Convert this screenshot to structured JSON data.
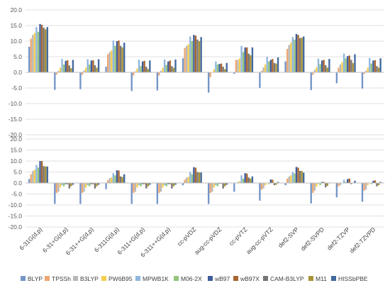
{
  "chart_data": [
    {
      "type": "bar",
      "ylim": [
        -20,
        20
      ],
      "yticks": [
        -20,
        -15,
        -10,
        -5,
        0,
        5,
        10,
        15,
        20
      ],
      "grid": true,
      "categories": [
        "6-31G(d,p)",
        "6-31+G(d,p)",
        "6-31++G(d,p)",
        "6-311G(d,p)",
        "6-311+G(d,p)",
        "6-311++G(d,p)",
        "cc-pVDZ",
        "aug-cc-pVDZ",
        "cc-pVTZ",
        "aug-cc-pVTZ",
        "def2-SVP",
        "def2-SVPD",
        "def2-TZVP",
        "def2-TZVPD"
      ],
      "series": [
        {
          "name": "BLYP",
          "values": [
            8.2,
            -5.6,
            -5.4,
            1.8,
            -6.0,
            -5.8,
            4.5,
            -6.5,
            -0.5,
            -5.0,
            3.5,
            -5.7,
            -3.5,
            -5.2
          ]
        },
        {
          "name": "TPSSh",
          "values": [
            10.8,
            -0.7,
            -0.8,
            5.8,
            -1.0,
            -1.0,
            7.8,
            -1.5,
            4.0,
            0.5,
            7.5,
            -0.8,
            1.5,
            -0.5
          ]
        },
        {
          "name": "B3LYP",
          "values": [
            12.0,
            0.5,
            0.6,
            6.5,
            0.3,
            0.5,
            8.5,
            0.0,
            4.0,
            1.6,
            8.8,
            0.8,
            2.5,
            0.5
          ]
        },
        {
          "name": "PW6B95",
          "values": [
            12.6,
            1.5,
            1.5,
            7.0,
            1.2,
            1.5,
            9.0,
            1.0,
            4.5,
            2.5,
            9.5,
            1.6,
            3.3,
            1.5
          ]
        },
        {
          "name": "MPWB1K",
          "values": [
            14.5,
            4.3,
            4.2,
            10.2,
            4.1,
            4.1,
            11.5,
            3.5,
            8.5,
            5.0,
            11.3,
            4.4,
            6.0,
            4.6
          ]
        },
        {
          "name": "M06-2X",
          "values": [
            13.0,
            2.5,
            2.5,
            8.5,
            2.0,
            2.4,
            10.0,
            2.5,
            6.5,
            3.5,
            10.5,
            2.6,
            4.5,
            2.8
          ]
        },
        {
          "name": "wB97",
          "values": [
            15.5,
            3.7,
            3.8,
            10.0,
            3.5,
            3.5,
            12.0,
            2.7,
            8.0,
            4.0,
            12.3,
            3.8,
            5.2,
            3.8
          ]
        },
        {
          "name": "wB97X",
          "values": [
            15.2,
            3.9,
            3.9,
            10.2,
            3.7,
            3.8,
            11.8,
            2.8,
            8.0,
            4.3,
            12.0,
            4.0,
            5.4,
            3.9
          ]
        },
        {
          "name": "CAM-B3LYP",
          "values": [
            14.3,
            2.2,
            2.3,
            8.5,
            1.8,
            2.0,
            10.5,
            1.8,
            6.0,
            3.0,
            11.0,
            2.3,
            4.0,
            2.0
          ]
        },
        {
          "name": "M11",
          "values": [
            13.8,
            1.3,
            1.5,
            8.0,
            1.1,
            1.5,
            10.0,
            1.0,
            5.5,
            2.8,
            11.1,
            1.5,
            3.0,
            1.5
          ]
        },
        {
          "name": "HISSbPBE",
          "values": [
            14.5,
            4.0,
            4.2,
            9.5,
            3.8,
            4.1,
            11.3,
            3.0,
            8.0,
            4.8,
            11.5,
            4.3,
            5.8,
            4.5
          ]
        }
      ]
    },
    {
      "type": "bar",
      "ylim": [
        -20,
        20
      ],
      "yticks": [
        -20,
        -15,
        -10,
        -5,
        0,
        5,
        10,
        15,
        20
      ],
      "grid": true,
      "categories": [
        "6-31G(d,p)",
        "6-31+G(d,p)",
        "6-31++G(d,p)",
        "6-311G(d,p)",
        "6-311+G(d,p)",
        "6-311++G(d,p)",
        "cc-pVDZ",
        "aug-cc-pVDZ",
        "cc-pVTZ",
        "aug-cc-pVTZ",
        "def2-SVP",
        "def2-SVPD",
        "def2-TZVP",
        "def2-TZVPD"
      ],
      "series": [
        {
          "name": "BLYP",
          "values": [
            1.8,
            -9.5,
            -9.5,
            -2.8,
            -9.5,
            -9.5,
            -1.0,
            -9.5,
            -4.0,
            -8.0,
            -1.0,
            -9.3,
            -6.5,
            -8.5
          ]
        },
        {
          "name": "TPSSh",
          "values": [
            4.0,
            -4.5,
            -4.5,
            1.3,
            -4.5,
            -4.5,
            1.5,
            -4.5,
            0.0,
            -3.0,
            2.0,
            -4.5,
            -1.5,
            -3.5
          ]
        },
        {
          "name": "B3LYP",
          "values": [
            5.5,
            -4.0,
            -4.0,
            2.2,
            -4.0,
            -4.0,
            2.5,
            -4.0,
            0.5,
            -2.5,
            3.0,
            -3.5,
            -1.0,
            -3.0
          ]
        },
        {
          "name": "PW6B95",
          "values": [
            6.0,
            -2.0,
            -2.0,
            2.5,
            -2.0,
            -2.0,
            2.8,
            -2.0,
            0.8,
            -1.0,
            3.5,
            -1.6,
            0.0,
            -1.0
          ]
        },
        {
          "name": "MPWB1K",
          "values": [
            8.2,
            -1.0,
            -1.0,
            4.5,
            -1.0,
            -1.0,
            5.0,
            -1.0,
            3.5,
            0.0,
            5.0,
            -0.3,
            1.5,
            0.2
          ]
        },
        {
          "name": "M06-2X",
          "values": [
            7.0,
            -1.5,
            -1.5,
            3.5,
            -1.5,
            -1.5,
            4.0,
            -1.5,
            2.0,
            -0.5,
            4.3,
            -1.0,
            0.5,
            -0.5
          ]
        },
        {
          "name": "wB97",
          "values": [
            10.0,
            -0.5,
            -0.5,
            5.8,
            -0.5,
            -0.5,
            7.2,
            -0.3,
            4.5,
            1.6,
            7.3,
            0.5,
            1.8,
            1.0
          ]
        },
        {
          "name": "wB97X",
          "values": [
            10.0,
            -0.5,
            -0.5,
            5.7,
            -0.5,
            -0.5,
            7.0,
            -0.3,
            4.3,
            1.5,
            7.0,
            0.5,
            2.0,
            1.2
          ]
        },
        {
          "name": "CAM-B3LYP",
          "values": [
            7.7,
            -2.5,
            -2.5,
            3.0,
            -2.5,
            -2.5,
            5.0,
            -2.5,
            2.5,
            -1.0,
            5.5,
            -2.0,
            -0.5,
            -1.5
          ]
        },
        {
          "name": "M11",
          "values": [
            7.5,
            -1.5,
            -1.5,
            2.8,
            -1.5,
            -1.5,
            4.8,
            -1.5,
            2.0,
            -0.8,
            5.5,
            -1.3,
            0.0,
            -1.0
          ]
        },
        {
          "name": "HISSbPBE",
          "values": [
            7.5,
            -0.8,
            -0.8,
            4.0,
            -0.8,
            -0.8,
            4.8,
            -0.8,
            3.0,
            0.5,
            4.7,
            0.2,
            1.0,
            0.5
          ]
        }
      ]
    }
  ],
  "colors": [
    "#7595c8",
    "#eda772",
    "#b8b8b8",
    "#f6ce4e",
    "#8fb6de",
    "#93c57b",
    "#3f5c9c",
    "#a9662d",
    "#757575",
    "#a99334",
    "#42699e"
  ],
  "legend": {
    "placement": "bottom",
    "items": [
      "BLYP",
      "TPSSh",
      "B3LYP",
      "PW6B95",
      "MPWB1K",
      "M06-2X",
      "wB97",
      "wB97X",
      "CAM-B3LYP",
      "M11",
      "HISSbPBE"
    ]
  }
}
